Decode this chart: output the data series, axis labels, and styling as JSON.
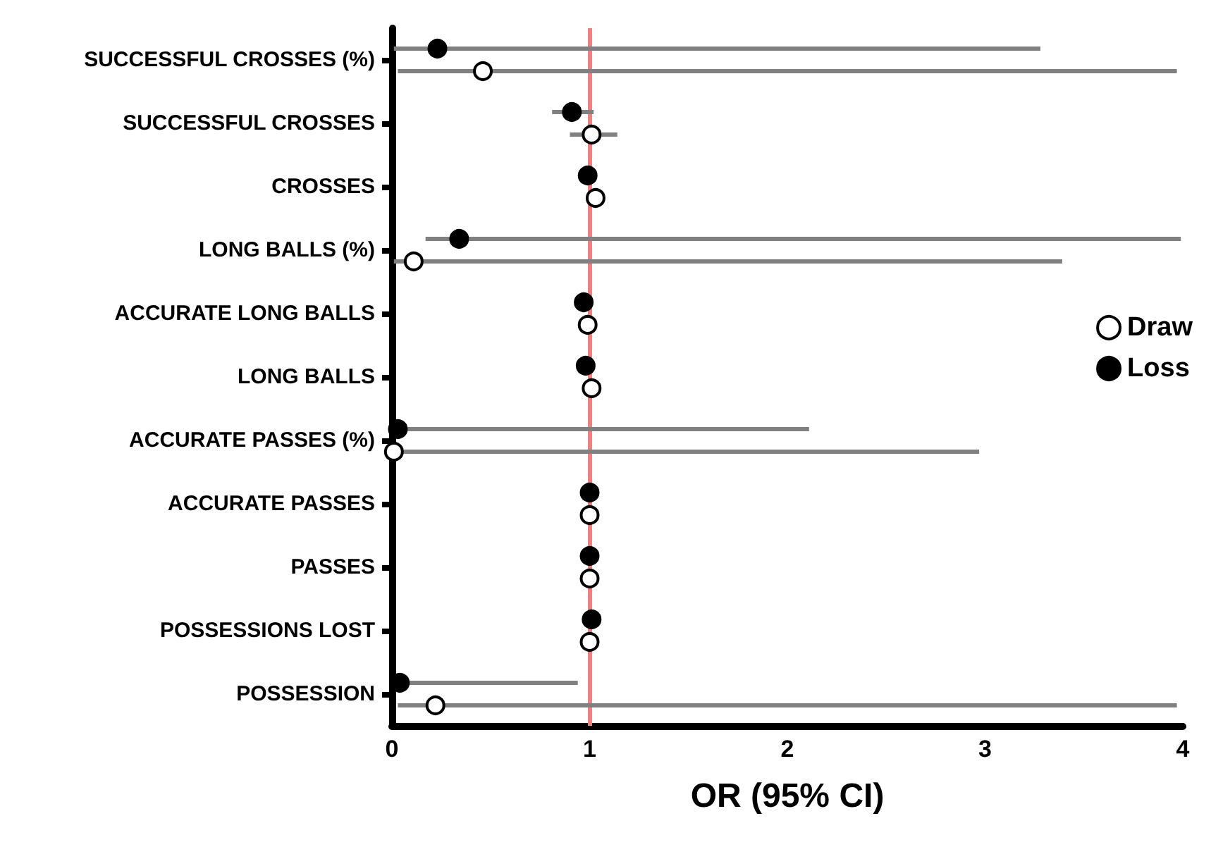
{
  "chart_data": {
    "type": "scatter",
    "orientation": "horizontal",
    "xlabel": "OR (95% CI)",
    "categories": [
      "SUCCESSFUL CROSSES (%)",
      "SUCCESSFUL CROSSES",
      "CROSSES",
      "LONG BALLS (%)",
      "ACCURATE LONG BALLS",
      "LONG BALLS",
      "ACCURATE PASSES (%)",
      "ACCURATE PASSES",
      "PASSES",
      "POSSESSIONS LOST",
      "POSSESSION"
    ],
    "series": [
      {
        "name": "Draw",
        "color": "#ffffff",
        "values": [
          0.46,
          1.01,
          1.03,
          0.11,
          0.99,
          1.01,
          0.01,
          1.0,
          1.0,
          1.0,
          0.22
        ],
        "errors": [
          [
            0.03,
            3.97
          ],
          [
            0.9,
            1.14
          ],
          null,
          [
            0.01,
            3.39
          ],
          null,
          null,
          [
            0.01,
            2.97
          ],
          null,
          null,
          null,
          [
            0.03,
            3.97
          ]
        ]
      },
      {
        "name": "Loss",
        "color": "#000000",
        "values": [
          0.23,
          0.91,
          0.99,
          0.34,
          0.97,
          0.98,
          0.03,
          1.0,
          1.0,
          1.01,
          0.04
        ],
        "errors": [
          [
            0.01,
            3.28
          ],
          [
            0.81,
            1.02
          ],
          null,
          [
            0.17,
            3.99
          ],
          null,
          null,
          [
            0.03,
            2.11
          ],
          null,
          null,
          null,
          [
            0.04,
            0.94
          ]
        ]
      }
    ],
    "xlim": [
      0,
      4
    ],
    "xticks": [
      0,
      1,
      2,
      3,
      4
    ],
    "ref_lines": [
      {
        "axis": "x",
        "value": 1,
        "color": "#f08080"
      }
    ],
    "grid": false,
    "legend": "right",
    "marker": "circle"
  }
}
